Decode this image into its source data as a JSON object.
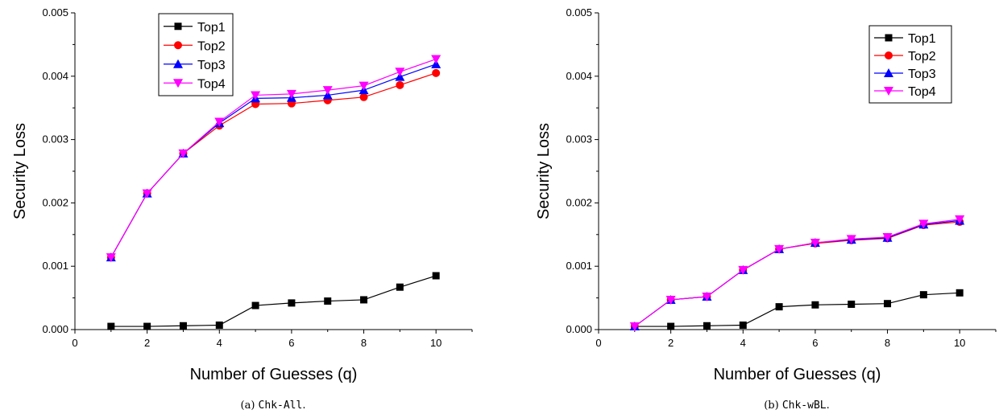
{
  "chart_data": [
    {
      "type": "line",
      "caption": {
        "prefix": "(a) ",
        "code": "Chk-All",
        "suffix": "."
      },
      "xlabel": "Number of Guesses (q)",
      "ylabel": "Security Loss",
      "xlim": [
        0,
        11
      ],
      "ylim": [
        0,
        0.005
      ],
      "xticks": [
        0,
        2,
        4,
        6,
        8,
        10
      ],
      "yticks": [
        "0.000",
        "0.001",
        "0.002",
        "0.003",
        "0.004",
        "0.005"
      ],
      "legend_position": "top-left",
      "x": [
        1,
        2,
        3,
        4,
        5,
        6,
        7,
        8,
        9,
        10
      ],
      "series": [
        {
          "name": "Top1",
          "color": "#000000",
          "marker": "square",
          "values": [
            5e-05,
            5e-05,
            6e-05,
            7e-05,
            0.00038,
            0.00042,
            0.00045,
            0.00047,
            0.00067,
            0.00085
          ]
        },
        {
          "name": "Top2",
          "color": "#ff0000",
          "marker": "circle",
          "values": [
            0.00114,
            0.00215,
            0.00278,
            0.00322,
            0.00356,
            0.00357,
            0.00362,
            0.00367,
            0.00386,
            0.00405
          ]
        },
        {
          "name": "Top3",
          "color": "#0000ff",
          "marker": "triangle-up",
          "values": [
            0.00114,
            0.00215,
            0.00278,
            0.00326,
            0.00365,
            0.00366,
            0.0037,
            0.00378,
            0.00399,
            0.00419
          ]
        },
        {
          "name": "Top4",
          "color": "#ff00ff",
          "marker": "triangle-down",
          "values": [
            0.00114,
            0.00215,
            0.00278,
            0.00328,
            0.0037,
            0.00372,
            0.00378,
            0.00385,
            0.00407,
            0.00427
          ]
        }
      ]
    },
    {
      "type": "line",
      "caption": {
        "prefix": "(b) ",
        "code": "Chk-wBL",
        "suffix": "."
      },
      "xlabel": "Number of Guesses (q)",
      "ylabel": "Security Loss",
      "xlim": [
        0,
        11
      ],
      "ylim": [
        0,
        0.005
      ],
      "xticks": [
        0,
        2,
        4,
        6,
        8,
        10
      ],
      "yticks": [
        "0.000",
        "0.001",
        "0.002",
        "0.003",
        "0.004",
        "0.005"
      ],
      "legend_position": "top-right",
      "x": [
        1,
        2,
        3,
        4,
        5,
        6,
        7,
        8,
        9,
        10
      ],
      "series": [
        {
          "name": "Top1",
          "color": "#000000",
          "marker": "square",
          "values": [
            5e-05,
            5e-05,
            6e-05,
            7e-05,
            0.00036,
            0.00039,
            0.0004,
            0.00041,
            0.00055,
            0.00058
          ]
        },
        {
          "name": "Top2",
          "color": "#ff0000",
          "marker": "circle",
          "values": [
            5e-05,
            0.00047,
            0.00052,
            0.00094,
            0.00127,
            0.00136,
            0.00141,
            0.00144,
            0.00165,
            0.0017
          ]
        },
        {
          "name": "Top3",
          "color": "#0000ff",
          "marker": "triangle-up",
          "values": [
            5e-05,
            0.00047,
            0.00052,
            0.00094,
            0.00127,
            0.00137,
            0.00142,
            0.00145,
            0.00166,
            0.00172
          ]
        },
        {
          "name": "Top4",
          "color": "#ff00ff",
          "marker": "triangle-down",
          "values": [
            5e-05,
            0.00047,
            0.00052,
            0.00094,
            0.00127,
            0.00137,
            0.00143,
            0.00146,
            0.00167,
            0.00174
          ]
        }
      ]
    }
  ]
}
